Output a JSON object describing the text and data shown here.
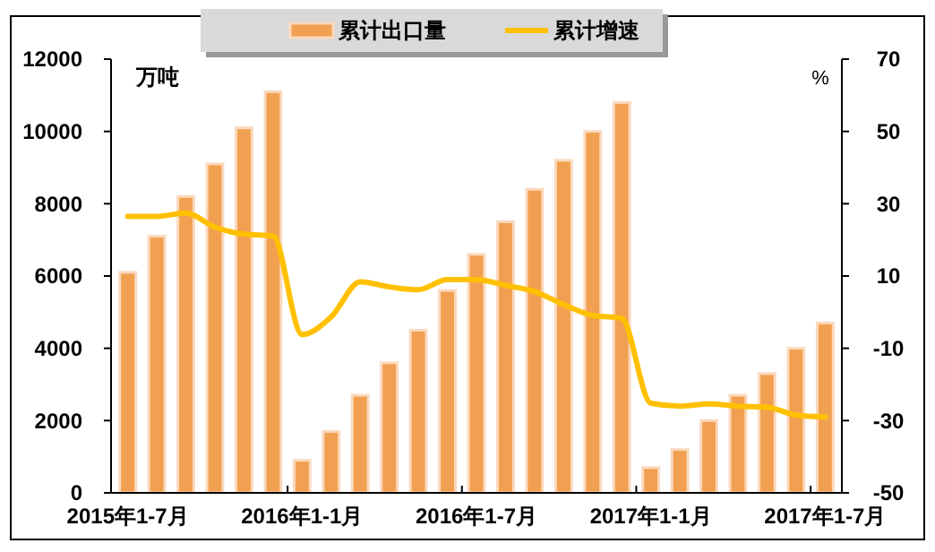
{
  "chart_data": {
    "type": "bar",
    "categories": [
      "2015年1-7月",
      null,
      null,
      null,
      null,
      null,
      "2016年1-1月",
      null,
      null,
      null,
      null,
      null,
      "2016年1-7月",
      null,
      null,
      null,
      null,
      null,
      "2017年1-1月",
      null,
      null,
      null,
      null,
      null,
      "2017年1-7月"
    ],
    "ylabel": "万吨",
    "y2label": "%",
    "ylim": [
      0,
      12000
    ],
    "yticks": [
      0,
      2000,
      4000,
      6000,
      8000,
      10000,
      12000
    ],
    "y2lim": [
      -50,
      70
    ],
    "y2ticks": [
      -50,
      -30,
      -10,
      10,
      30,
      50,
      70
    ],
    "legend": "top",
    "grid": false,
    "series": [
      {
        "name": "累计出口量",
        "color": "#f0a050",
        "values": [
          6100,
          7100,
          8200,
          9100,
          10100,
          11100,
          900,
          1700,
          2700,
          3600,
          4500,
          5600,
          6600,
          7500,
          8400,
          9200,
          10000,
          10800,
          700,
          1200,
          2000,
          2700,
          3300,
          4000,
          4700
        ]
      },
      {
        "name": "累计增速",
        "type": "line",
        "axis": "y2",
        "color": "#ffc000",
        "values": [
          26.5,
          26.5,
          27.4,
          23.5,
          21.6,
          21.1,
          -6.2,
          -1.3,
          8.4,
          7,
          6.2,
          9,
          9,
          7.4,
          5.7,
          2.1,
          -0.9,
          -1.7,
          -25.2,
          -26,
          -25.4,
          -26,
          -26.3,
          -28.5,
          -29
        ]
      }
    ]
  }
}
